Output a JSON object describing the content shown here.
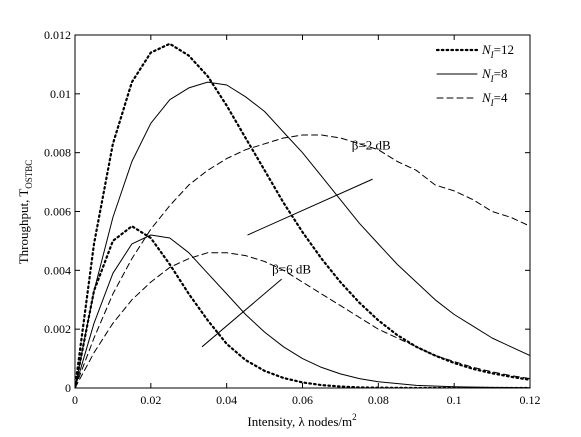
{
  "chart_data": {
    "type": "line",
    "xlabel": "Intensity, λ nodes/m",
    "xlabel_sup": "2",
    "ylabel": "Throughput, T",
    "ylabel_sub": "OSTBC",
    "xlim": [
      0,
      0.12
    ],
    "ylim": [
      0,
      0.012
    ],
    "xticks": [
      0,
      0.02,
      0.04,
      0.06,
      0.08,
      0.1,
      0.12
    ],
    "xtick_labels": [
      "0",
      "0.02",
      "0.04",
      "0.06",
      "0.08",
      "0.1",
      "0.12"
    ],
    "yticks": [
      0,
      0.002,
      0.004,
      0.006,
      0.008,
      0.01,
      0.012
    ],
    "ytick_labels": [
      "0",
      "0.002",
      "0.004",
      "0.006",
      "0.008",
      "0.01",
      "0.012"
    ],
    "grid": false,
    "legend_position": "top-right",
    "legend": [
      {
        "prefix": "N",
        "sub": "I",
        "suffix": "=12",
        "style": "dotted"
      },
      {
        "prefix": "N",
        "sub": "I",
        "suffix": "=8",
        "style": "solid"
      },
      {
        "prefix": "N",
        "sub": "I",
        "suffix": "=4",
        "style": "dashed"
      }
    ],
    "annotations": [
      {
        "text": "β=2 dB",
        "x": 0.073,
        "y": 0.0081
      },
      {
        "text": "β=6 dB",
        "x": 0.052,
        "y": 0.0039
      }
    ],
    "series": [
      {
        "group": "β=2 dB",
        "legend": "N_I=12",
        "style": "dotted",
        "x": [
          0,
          0.005,
          0.01,
          0.015,
          0.02,
          0.025,
          0.03,
          0.035,
          0.04,
          0.045,
          0.05,
          0.055,
          0.06,
          0.065,
          0.07,
          0.075,
          0.08,
          0.085,
          0.09,
          0.095,
          0.1,
          0.105,
          0.11,
          0.115,
          0.12
        ],
        "y": [
          0,
          0.0049,
          0.0083,
          0.0104,
          0.0114,
          0.0117,
          0.0113,
          0.0106,
          0.0096,
          0.0085,
          0.0074,
          0.0063,
          0.0053,
          0.0044,
          0.0036,
          0.0029,
          0.0023,
          0.0018,
          0.0014,
          0.0011,
          0.00085,
          0.00065,
          0.0005,
          0.00038,
          0.00028
        ]
      },
      {
        "group": "β=2 dB",
        "legend": "N_I=8",
        "style": "solid",
        "x": [
          0,
          0.005,
          0.01,
          0.015,
          0.02,
          0.025,
          0.03,
          0.035,
          0.04,
          0.045,
          0.05,
          0.055,
          0.06,
          0.065,
          0.07,
          0.075,
          0.08,
          0.085,
          0.09,
          0.095,
          0.1,
          0.105,
          0.11,
          0.115,
          0.12
        ],
        "y": [
          0,
          0.0033,
          0.0058,
          0.0077,
          0.009,
          0.0098,
          0.0102,
          0.0104,
          0.0103,
          0.0099,
          0.0094,
          0.0087,
          0.008,
          0.0072,
          0.0064,
          0.0056,
          0.0049,
          0.0042,
          0.0036,
          0.003,
          0.0025,
          0.0021,
          0.0017,
          0.0014,
          0.0011
        ]
      },
      {
        "group": "β=2 dB",
        "legend": "N_I=4",
        "style": "dashed",
        "x": [
          0,
          0.005,
          0.01,
          0.015,
          0.02,
          0.025,
          0.03,
          0.035,
          0.04,
          0.045,
          0.05,
          0.055,
          0.06,
          0.065,
          0.07,
          0.075,
          0.08,
          0.085,
          0.09,
          0.095,
          0.1,
          0.105,
          0.11,
          0.115,
          0.12
        ],
        "y": [
          0,
          0.0017,
          0.0032,
          0.0044,
          0.0054,
          0.0062,
          0.0069,
          0.0074,
          0.0078,
          0.0081,
          0.0083,
          0.0085,
          0.0086,
          0.0086,
          0.0085,
          0.0083,
          0.0081,
          0.0077,
          0.0074,
          0.0069,
          0.0067,
          0.0064,
          0.006,
          0.0058,
          0.0055
        ]
      },
      {
        "group": "β=6 dB",
        "legend": "N_I=12",
        "style": "dotted",
        "x": [
          0,
          0.005,
          0.01,
          0.015,
          0.02,
          0.025,
          0.03,
          0.035,
          0.04,
          0.045,
          0.05,
          0.055,
          0.06,
          0.065,
          0.07,
          0.075,
          0.08,
          0.09,
          0.1,
          0.11,
          0.12
        ],
        "y": [
          0,
          0.0033,
          0.005,
          0.0055,
          0.0051,
          0.0042,
          0.0032,
          0.0023,
          0.0015,
          0.00095,
          0.00058,
          0.00034,
          0.00019,
          0.0001,
          5e-05,
          2e-05,
          1e-05,
          0,
          0,
          0,
          0
        ]
      },
      {
        "group": "β=6 dB",
        "legend": "N_I=8",
        "style": "solid",
        "x": [
          0,
          0.005,
          0.01,
          0.015,
          0.02,
          0.025,
          0.03,
          0.035,
          0.04,
          0.045,
          0.05,
          0.055,
          0.06,
          0.065,
          0.07,
          0.075,
          0.08,
          0.09,
          0.1,
          0.11,
          0.12
        ],
        "y": [
          0,
          0.0022,
          0.0039,
          0.0049,
          0.0052,
          0.0051,
          0.0046,
          0.0039,
          0.0032,
          0.0025,
          0.0019,
          0.0014,
          0.001,
          0.0007,
          0.00048,
          0.00032,
          0.00021,
          9e-05,
          4e-05,
          2e-05,
          1e-05
        ]
      },
      {
        "group": "β=6 dB",
        "legend": "N_I=4",
        "style": "dashed",
        "x": [
          0,
          0.005,
          0.01,
          0.015,
          0.02,
          0.025,
          0.03,
          0.035,
          0.04,
          0.045,
          0.05,
          0.055,
          0.06,
          0.065,
          0.07,
          0.075,
          0.08,
          0.085,
          0.09,
          0.095,
          0.1,
          0.105,
          0.11,
          0.115,
          0.12
        ],
        "y": [
          0,
          0.0012,
          0.0022,
          0.003,
          0.0036,
          0.0041,
          0.0044,
          0.0046,
          0.0046,
          0.0045,
          0.0043,
          0.004,
          0.0036,
          0.0032,
          0.0028,
          0.0024,
          0.002,
          0.0017,
          0.0014,
          0.0011,
          0.0009,
          0.0007,
          0.00055,
          0.00042,
          0.00032
        ]
      }
    ]
  }
}
